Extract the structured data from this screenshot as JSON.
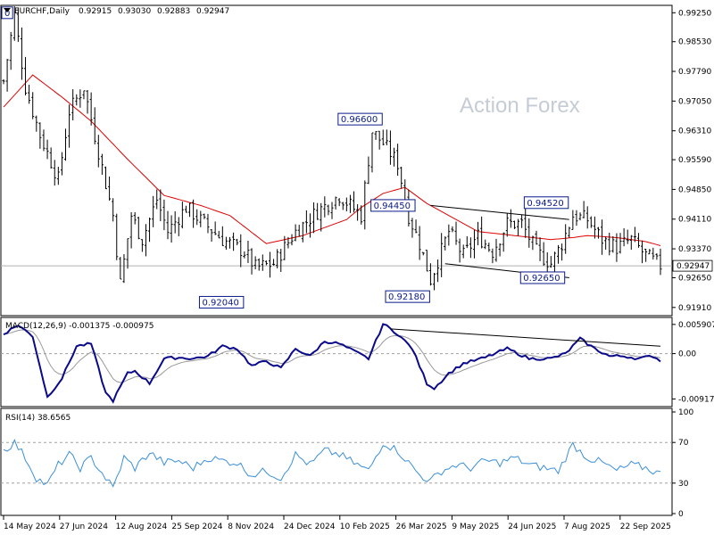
{
  "header": {
    "symbol": "EURCHF,Daily",
    "open": "0.92915",
    "high": "0.93030",
    "low": "0.92883",
    "close": "0.92947"
  },
  "watermark": "Action Forex",
  "colors": {
    "price": "#000000",
    "ma": "#e00000",
    "macd": "#0a0a8a",
    "signal": "#999999",
    "rsi": "#3b8fd9",
    "label_border": "#0a1a8a",
    "frame": "#000000",
    "grid_dash": "#a0a0a0"
  },
  "chart_data": [
    {
      "type": "candlestick",
      "name": "main",
      "title": "EURCHF,Daily",
      "ylim": [
        0.9175,
        0.9939
      ],
      "y_ticks": [
        "0.99250",
        "0.98530",
        "0.97790",
        "0.97050",
        "0.96310",
        "0.95590",
        "0.94850",
        "0.94110",
        "0.93370",
        "0.92650",
        "0.91910"
      ],
      "current_price": "0.92947",
      "x_ticks": [
        "14 May 2024",
        "27 Jun 2024",
        "12 Aug 2024",
        "25 Sep 2024",
        "8 Nov 2024",
        "24 Dec 2024",
        "10 Feb 2025",
        "26 Mar 2025",
        "9 May 2025",
        "24 Jun 2025",
        "7 Aug 2025",
        "22 Sep 2025"
      ],
      "close_anchors": [
        [
          0,
          0.9755
        ],
        [
          3,
          0.992
        ],
        [
          6,
          0.974
        ],
        [
          10,
          0.962
        ],
        [
          15,
          0.951
        ],
        [
          18,
          0.968
        ],
        [
          22,
          0.974
        ],
        [
          25,
          0.962
        ],
        [
          30,
          0.942
        ],
        [
          32,
          0.925
        ],
        [
          35,
          0.942
        ],
        [
          38,
          0.936
        ],
        [
          42,
          0.946
        ],
        [
          45,
          0.938
        ],
        [
          50,
          0.944
        ],
        [
          55,
          0.94
        ],
        [
          60,
          0.936
        ],
        [
          66,
          0.933
        ],
        [
          69,
          0.929
        ],
        [
          74,
          0.93
        ],
        [
          80,
          0.938
        ],
        [
          86,
          0.943
        ],
        [
          92,
          0.947
        ],
        [
          98,
          0.942
        ],
        [
          101,
          0.963
        ],
        [
          104,
          0.96
        ],
        [
          108,
          0.955
        ],
        [
          111,
          0.942
        ],
        [
          114,
          0.935
        ],
        [
          117,
          0.926
        ],
        [
          122,
          0.938
        ],
        [
          126,
          0.932
        ],
        [
          130,
          0.937
        ],
        [
          134,
          0.933
        ],
        [
          138,
          0.94
        ],
        [
          142,
          0.94
        ],
        [
          146,
          0.933
        ],
        [
          150,
          0.93
        ],
        [
          153,
          0.935
        ],
        [
          156,
          0.942
        ],
        [
          160,
          0.941
        ],
        [
          164,
          0.936
        ],
        [
          168,
          0.934
        ],
        [
          172,
          0.936
        ],
        [
          176,
          0.932
        ],
        [
          180,
          0.9295
        ]
      ],
      "ma_anchors": [
        [
          0,
          0.969
        ],
        [
          8,
          0.977
        ],
        [
          16,
          0.9715
        ],
        [
          24,
          0.9655
        ],
        [
          34,
          0.956
        ],
        [
          44,
          0.947
        ],
        [
          54,
          0.9445
        ],
        [
          62,
          0.942
        ],
        [
          72,
          0.935
        ],
        [
          82,
          0.937
        ],
        [
          94,
          0.941
        ],
        [
          98,
          0.944
        ],
        [
          104,
          0.9475
        ],
        [
          110,
          0.949
        ],
        [
          116,
          0.945
        ],
        [
          122,
          0.942
        ],
        [
          130,
          0.938
        ],
        [
          140,
          0.937
        ],
        [
          150,
          0.936
        ],
        [
          156,
          0.9365
        ],
        [
          160,
          0.937
        ],
        [
          168,
          0.9365
        ],
        [
          176,
          0.9355
        ],
        [
          180,
          0.9345
        ]
      ],
      "annotations": [
        {
          "text": "0.96600",
          "value": 0.966,
          "bar": 104,
          "side": "left"
        },
        {
          "text": "0.94520",
          "value": 0.9452,
          "bar": 155,
          "side": "left"
        },
        {
          "text": "0.94450",
          "value": 0.9445,
          "bar": 113,
          "side": "left"
        },
        {
          "text": "0.92650",
          "value": 0.9265,
          "bar": 154,
          "side": "left"
        },
        {
          "text": "0.92180",
          "value": 0.9218,
          "bar": 117,
          "side": "left"
        },
        {
          "text": "0.92040",
          "value": 0.9204,
          "bar": 66,
          "side": "left"
        },
        {
          "text": "0",
          "value": 0.9925,
          "bar": 0,
          "side": "right"
        }
      ],
      "trendlines": [
        {
          "from": [
            117,
            0.9445
          ],
          "to": [
            155,
            0.941
          ]
        },
        {
          "from": [
            121,
            0.93
          ],
          "to": [
            155,
            0.9265
          ]
        }
      ]
    },
    {
      "type": "macd",
      "name": "MACD(12,26,9)",
      "header": "MACD(12,26,9) -0.001375 -0.000975",
      "ylim": [
        -0.01,
        0.0066
      ],
      "y_ticks": [
        "0.005907",
        "0.00",
        "-0.009175"
      ],
      "macd_anchors": [
        [
          0,
          0.004
        ],
        [
          4,
          0.0058
        ],
        [
          8,
          0.0035
        ],
        [
          12,
          -0.0088
        ],
        [
          16,
          -0.005
        ],
        [
          20,
          0.0015
        ],
        [
          24,
          0.002
        ],
        [
          28,
          -0.008
        ],
        [
          30,
          -0.0095
        ],
        [
          34,
          -0.004
        ],
        [
          36,
          -0.0035
        ],
        [
          40,
          -0.006
        ],
        [
          44,
          -0.001
        ],
        [
          48,
          -0.0008
        ],
        [
          52,
          -0.001
        ],
        [
          56,
          -0.0005
        ],
        [
          60,
          0.0015
        ],
        [
          64,
          0.001
        ],
        [
          68,
          -0.0025
        ],
        [
          72,
          -0.0015
        ],
        [
          76,
          -0.003
        ],
        [
          80,
          0.001
        ],
        [
          84,
          -0.0005
        ],
        [
          88,
          0.0025
        ],
        [
          92,
          0.002
        ],
        [
          96,
          0.0005
        ],
        [
          100,
          -0.001
        ],
        [
          104,
          0.006
        ],
        [
          108,
          0.004
        ],
        [
          112,
          0.001
        ],
        [
          116,
          -0.006
        ],
        [
          118,
          -0.007
        ],
        [
          122,
          -0.004
        ],
        [
          126,
          -0.002
        ],
        [
          132,
          -0.0008
        ],
        [
          138,
          0.001
        ],
        [
          144,
          -0.001
        ],
        [
          150,
          -0.001
        ],
        [
          154,
          0.0
        ],
        [
          158,
          0.003
        ],
        [
          162,
          0.001
        ],
        [
          166,
          -0.0005
        ],
        [
          170,
          -0.0005
        ],
        [
          174,
          -0.001
        ],
        [
          178,
          -0.0005
        ],
        [
          180,
          -0.0014
        ]
      ],
      "trendline": {
        "from": [
          106,
          0.005
        ],
        "to": [
          180,
          0.0015
        ]
      }
    },
    {
      "type": "line",
      "name": "RSI(14)",
      "header": "RSI(14) 38.6565",
      "ylim": [
        0,
        100
      ],
      "y_ticks": [
        "100",
        "70",
        "30",
        "0"
      ],
      "levels": [
        70,
        30
      ],
      "rsi_anchors": [
        [
          0,
          62
        ],
        [
          3,
          70
        ],
        [
          6,
          55
        ],
        [
          9,
          35
        ],
        [
          12,
          28
        ],
        [
          15,
          48
        ],
        [
          18,
          58
        ],
        [
          21,
          45
        ],
        [
          24,
          55
        ],
        [
          28,
          35
        ],
        [
          30,
          25
        ],
        [
          33,
          55
        ],
        [
          36,
          45
        ],
        [
          40,
          60
        ],
        [
          44,
          50
        ],
        [
          48,
          52
        ],
        [
          52,
          45
        ],
        [
          56,
          55
        ],
        [
          60,
          52
        ],
        [
          64,
          50
        ],
        [
          68,
          38
        ],
        [
          72,
          42
        ],
        [
          76,
          35
        ],
        [
          80,
          58
        ],
        [
          84,
          48
        ],
        [
          88,
          62
        ],
        [
          92,
          58
        ],
        [
          96,
          50
        ],
        [
          100,
          42
        ],
        [
          104,
          70
        ],
        [
          108,
          62
        ],
        [
          111,
          50
        ],
        [
          114,
          38
        ],
        [
          117,
          32
        ],
        [
          120,
          42
        ],
        [
          124,
          48
        ],
        [
          128,
          45
        ],
        [
          132,
          52
        ],
        [
          136,
          50
        ],
        [
          140,
          55
        ],
        [
          144,
          48
        ],
        [
          148,
          45
        ],
        [
          152,
          42
        ],
        [
          156,
          68
        ],
        [
          160,
          55
        ],
        [
          164,
          50
        ],
        [
          168,
          42
        ],
        [
          172,
          48
        ],
        [
          176,
          45
        ],
        [
          180,
          39
        ]
      ]
    }
  ]
}
